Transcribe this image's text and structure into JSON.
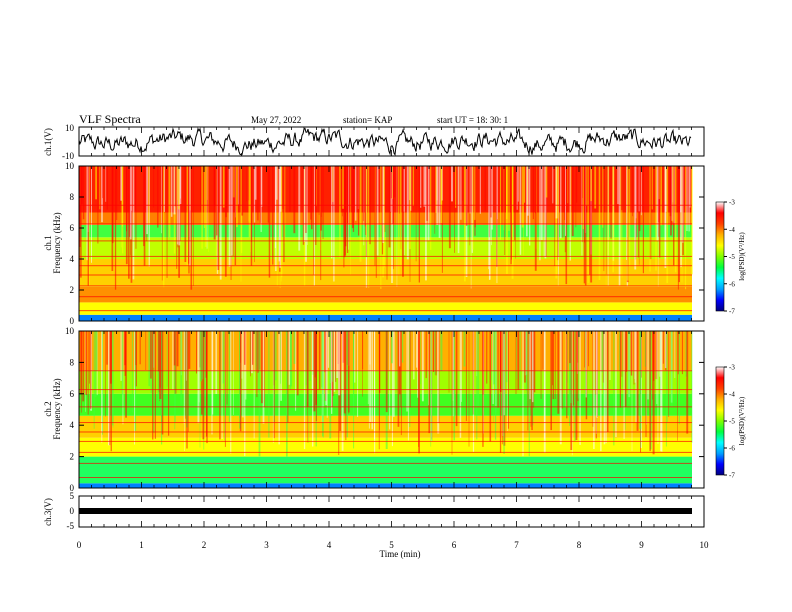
{
  "header": {
    "title": "VLF Spectra",
    "date": "May 27, 2022",
    "station": "station= KAP",
    "start_ut": "start  UT =   18: 30: 1"
  },
  "colors": {
    "colormap": [
      "#000080",
      "#0000ff",
      "#00a0ff",
      "#00ffff",
      "#00ff40",
      "#80ff00",
      "#ffff00",
      "#ffb000",
      "#ff4000",
      "#ff0000",
      "#ffffff"
    ],
    "trace": "#000000"
  },
  "chart_data": [
    {
      "type": "line",
      "name": "ch1-waveform",
      "ylabel": "ch.1(V)",
      "ylim": [
        -10,
        10
      ],
      "yticks": [
        "10",
        "-10"
      ],
      "xlim": [
        0,
        10
      ]
    },
    {
      "type": "heatmap",
      "name": "ch1-spectrogram",
      "ylabel": "ch.1\nFrequency (kHz)",
      "ylim": [
        0,
        10
      ],
      "yticks": [
        "0",
        "2",
        "4",
        "6",
        "8",
        "10"
      ],
      "xlim": [
        0,
        10
      ],
      "data_end_min": 9.8,
      "colorbar": {
        "label": "log(PSD)(V²/Hz)",
        "range": [
          -7,
          -3
        ],
        "ticks": [
          "-3",
          "-4",
          "-5",
          "-6",
          "-7"
        ]
      }
    },
    {
      "type": "heatmap",
      "name": "ch2-spectrogram",
      "ylabel": "ch.2\nFrequency (kHz)",
      "ylim": [
        0,
        10
      ],
      "yticks": [
        "0",
        "2",
        "4",
        "6",
        "8",
        "10"
      ],
      "xlim": [
        0,
        10
      ],
      "data_end_min": 9.8,
      "colorbar": {
        "label": "log(PSD)(V²/Hz)",
        "range": [
          -7,
          -3
        ],
        "ticks": [
          "-3",
          "-4",
          "-5",
          "-6",
          "-7"
        ]
      }
    },
    {
      "type": "line",
      "name": "ch3-waveform",
      "ylabel": "ch.3(V)",
      "ylim": [
        -5,
        5
      ],
      "yticks": [
        "5",
        "0",
        "-5"
      ],
      "xlim": [
        0,
        10
      ],
      "xlabel": "Time  (min)",
      "xticks": [
        "0",
        "1",
        "2",
        "3",
        "4",
        "5",
        "6",
        "7",
        "8",
        "9",
        "10"
      ]
    }
  ]
}
